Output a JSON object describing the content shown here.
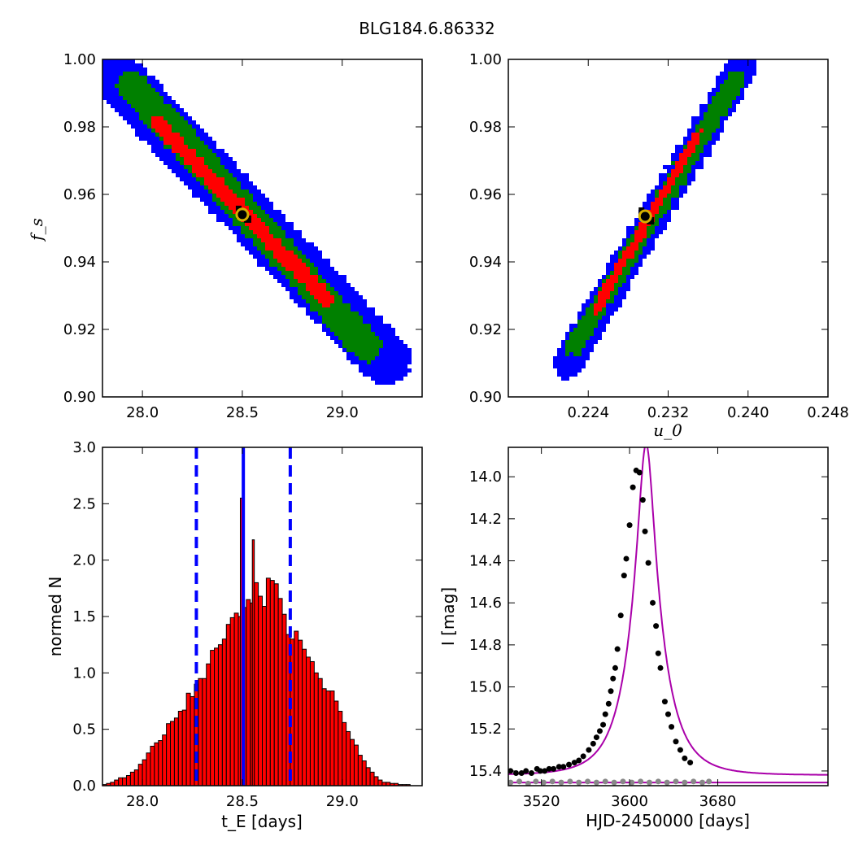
{
  "figure": {
    "title": "BLG184.6.86332"
  },
  "chart_data": [
    {
      "id": "fs_vs_tE",
      "type": "heatmap",
      "xlabel": "",
      "ylabel": "f_s",
      "xlim": [
        27.8,
        29.4
      ],
      "ylim": [
        0.9,
        1.0
      ],
      "xticks": [
        "28.0",
        "28.5",
        "29.0"
      ],
      "xtick_values": [
        28.0,
        28.5,
        29.0
      ],
      "yticks": [
        "0.90",
        "0.92",
        "0.94",
        "0.96",
        "0.98",
        "1.00"
      ],
      "ytick_values": [
        0.9,
        0.92,
        0.94,
        0.96,
        0.98,
        1.0
      ],
      "colors": {
        "outer": "#0000ff",
        "middle": "#008000",
        "inner": "#ff0000"
      },
      "regions": [
        {
          "level": "outer",
          "from": [
            27.84,
            0.997
          ],
          "to": [
            29.22,
            0.911
          ],
          "halfwidth": 0.0075
        },
        {
          "level": "middle",
          "from": [
            27.95,
            0.992
          ],
          "to": [
            29.12,
            0.915
          ],
          "halfwidth": 0.0045
        },
        {
          "level": "inner",
          "from": [
            28.08,
            0.981
          ],
          "to": [
            28.92,
            0.929
          ],
          "halfwidth": 0.0022
        }
      ],
      "best_fit": {
        "x": 28.5,
        "y": 0.954
      },
      "marker_colors": {
        "face": "#000000",
        "edge": "#d4b000"
      }
    },
    {
      "id": "fs_vs_u0",
      "type": "heatmap",
      "xlabel": "u_0",
      "ylabel": "",
      "xlim": [
        0.216,
        0.248
      ],
      "ylim": [
        0.9,
        1.0
      ],
      "xticks": [
        "0.224",
        "0.232",
        "0.240",
        "0.248"
      ],
      "xtick_values": [
        0.224,
        0.232,
        0.24,
        0.248
      ],
      "yticks": [
        "0.90",
        "0.92",
        "0.94",
        "0.96",
        "0.98",
        "1.00"
      ],
      "ytick_values": [
        0.9,
        0.92,
        0.94,
        0.96,
        0.98,
        1.0
      ],
      "colors": {
        "outer": "#0000ff",
        "middle": "#008000",
        "inner": "#ff0000"
      },
      "regions": [
        {
          "level": "outer",
          "from": [
            0.2219,
            0.91
          ],
          "to": [
            0.2395,
            0.998
          ],
          "halfwidth": 0.0045
        },
        {
          "level": "middle",
          "from": [
            0.2226,
            0.915
          ],
          "to": [
            0.2388,
            0.994
          ],
          "halfwidth": 0.0027
        },
        {
          "level": "inner",
          "from": [
            0.2248,
            0.926
          ],
          "to": [
            0.235,
            0.978
          ],
          "halfwidth": 0.0013
        }
      ],
      "best_fit": {
        "x": 0.2297,
        "y": 0.9535
      },
      "marker_colors": {
        "face": "#000000",
        "edge": "#d4b000"
      }
    },
    {
      "id": "tE_histogram",
      "type": "bar",
      "xlabel": "t_E  [days]",
      "ylabel": "normed N",
      "xlim": [
        27.8,
        29.4
      ],
      "ylim": [
        0.0,
        3.0
      ],
      "xticks": [
        "28.0",
        "28.5",
        "29.0"
      ],
      "xtick_values": [
        28.0,
        28.5,
        29.0
      ],
      "yticks": [
        "0.0",
        "0.5",
        "1.0",
        "1.5",
        "2.0",
        "2.5",
        "3.0"
      ],
      "ytick_values": [
        0.0,
        0.5,
        1.0,
        1.5,
        2.0,
        2.5,
        3.0
      ],
      "bin_start": 27.8,
      "bin_width": 0.02,
      "values": [
        0.01,
        0.02,
        0.03,
        0.05,
        0.07,
        0.07,
        0.09,
        0.12,
        0.14,
        0.19,
        0.23,
        0.29,
        0.35,
        0.38,
        0.4,
        0.45,
        0.55,
        0.57,
        0.6,
        0.66,
        0.67,
        0.82,
        0.79,
        0.9,
        0.95,
        0.95,
        1.08,
        1.2,
        1.22,
        1.25,
        1.3,
        1.43,
        1.49,
        1.53,
        1.5,
        1.58,
        1.65,
        1.62,
        1.8,
        1.68,
        1.59,
        1.84,
        1.82,
        1.79,
        1.66,
        1.52,
        1.34,
        1.3,
        1.37,
        1.29,
        1.21,
        1.14,
        1.1,
        1.0,
        0.95,
        0.86,
        0.84,
        0.84,
        0.75,
        0.66,
        0.56,
        0.48,
        0.41,
        0.36,
        0.27,
        0.22,
        0.16,
        0.12,
        0.08,
        0.05,
        0.03,
        0.03,
        0.02,
        0.02,
        0.01,
        0.01,
        0.01,
        0.0,
        0.0,
        0.0
      ],
      "spikes": [
        {
          "x": 28.49,
          "value": 2.55
        },
        {
          "x": 28.55,
          "value": 2.18
        }
      ],
      "colors": {
        "bar": "#ff0000",
        "edge": "#000000",
        "line": "#0000ff"
      },
      "vlines": [
        {
          "x": 28.27,
          "style": "dashed"
        },
        {
          "x": 28.505,
          "style": "solid"
        },
        {
          "x": 28.74,
          "style": "dashed"
        }
      ]
    },
    {
      "id": "light_curve",
      "type": "scatter",
      "xlabel": "HJD-2450000 [days]",
      "ylabel": "I [mag]",
      "xlim": [
        3490,
        3780
      ],
      "ylim": [
        15.47,
        13.86
      ],
      "xticks": [
        "3520",
        "3600",
        "3680"
      ],
      "xtick_values": [
        3520,
        3600,
        3680
      ],
      "yticks": [
        "14.0",
        "14.2",
        "14.4",
        "14.6",
        "14.8",
        "15.0",
        "15.2",
        "15.4"
      ],
      "ytick_values": [
        14.0,
        14.2,
        14.4,
        14.6,
        14.8,
        15.0,
        15.2,
        15.4
      ],
      "model": {
        "t0": 3615,
        "tE": 28.5,
        "u0": 0.23,
        "fs": 0.954,
        "base_mag": 15.42
      },
      "baseline_flat": 15.455,
      "colors": {
        "model": "#aa00aa",
        "points": "#000000",
        "points_faint": "#888888"
      },
      "points": [
        [
          3492,
          15.4
        ],
        [
          3497,
          15.41
        ],
        [
          3502,
          15.41
        ],
        [
          3506,
          15.4
        ],
        [
          3511,
          15.41
        ],
        [
          3516,
          15.39
        ],
        [
          3519,
          15.4
        ],
        [
          3523,
          15.4
        ],
        [
          3527,
          15.39
        ],
        [
          3531,
          15.39
        ],
        [
          3536,
          15.38
        ],
        [
          3540,
          15.38
        ],
        [
          3545,
          15.37
        ],
        [
          3550,
          15.36
        ],
        [
          3554,
          15.35
        ],
        [
          3558,
          15.33
        ],
        [
          3563,
          15.3
        ],
        [
          3567,
          15.27
        ],
        [
          3570,
          15.24
        ],
        [
          3573,
          15.21
        ],
        [
          3576,
          15.18
        ],
        [
          3578,
          15.13
        ],
        [
          3581,
          15.08
        ],
        [
          3583,
          15.02
        ],
        [
          3585,
          14.96
        ],
        [
          3587,
          14.91
        ],
        [
          3589,
          14.82
        ],
        [
          3592,
          14.66
        ],
        [
          3595,
          14.47
        ],
        [
          3597,
          14.39
        ],
        [
          3600,
          14.23
        ],
        [
          3603,
          14.05
        ],
        [
          3606,
          13.97
        ],
        [
          3609,
          13.98
        ],
        [
          3612,
          14.11
        ],
        [
          3614,
          14.26
        ],
        [
          3617,
          14.41
        ],
        [
          3621,
          14.6
        ],
        [
          3624,
          14.71
        ],
        [
          3626,
          14.84
        ],
        [
          3628,
          14.91
        ],
        [
          3632,
          15.07
        ],
        [
          3635,
          15.13
        ],
        [
          3638,
          15.19
        ],
        [
          3642,
          15.26
        ],
        [
          3646,
          15.3
        ],
        [
          3650,
          15.34
        ],
        [
          3655,
          15.36
        ]
      ],
      "points_faint": [
        [
          3492,
          15.455
        ],
        [
          3500,
          15.45
        ],
        [
          3508,
          15.46
        ],
        [
          3515,
          15.45
        ],
        [
          3522,
          15.455
        ],
        [
          3530,
          15.45
        ],
        [
          3538,
          15.455
        ],
        [
          3546,
          15.45
        ],
        [
          3554,
          15.455
        ],
        [
          3562,
          15.45
        ],
        [
          3570,
          15.455
        ],
        [
          3578,
          15.45
        ],
        [
          3586,
          15.455
        ],
        [
          3594,
          15.45
        ],
        [
          3602,
          15.455
        ],
        [
          3610,
          15.45
        ],
        [
          3618,
          15.455
        ],
        [
          3626,
          15.45
        ],
        [
          3634,
          15.455
        ],
        [
          3642,
          15.45
        ],
        [
          3650,
          15.455
        ],
        [
          3658,
          15.45
        ],
        [
          3666,
          15.455
        ],
        [
          3672,
          15.45
        ]
      ]
    }
  ]
}
